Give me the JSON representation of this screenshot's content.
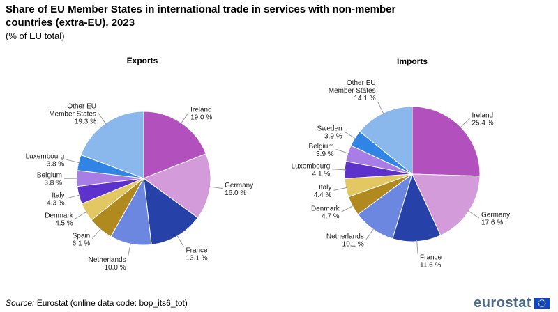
{
  "header": {
    "title": "Share of EU Member States in international trade in services with non-member countries (extra-EU), 2023",
    "subtitle": "(% of EU total)"
  },
  "footer": {
    "source_label": "Source:",
    "source_text": "Eurostat (online data code: bop_its6_tot)",
    "logo": "eurostat"
  },
  "chart_data": [
    {
      "type": "pie",
      "title": "Exports",
      "unit": "%",
      "slices": [
        {
          "label": [
            "Ireland"
          ],
          "value": 19.0,
          "value_label": "19.0 %",
          "color": "#b251be"
        },
        {
          "label": [
            "Germany"
          ],
          "value": 16.0,
          "value_label": "16.0 %",
          "color": "#d49bda"
        },
        {
          "label": [
            "France"
          ],
          "value": 13.1,
          "value_label": "13.1 %",
          "color": "#2641a8"
        },
        {
          "label": [
            "Netherlands"
          ],
          "value": 10.0,
          "value_label": "10.0 %",
          "color": "#6c87e0"
        },
        {
          "label": [
            "Spain"
          ],
          "value": 6.1,
          "value_label": "6.1 %",
          "color": "#b08a1e"
        },
        {
          "label": [
            "Denmark"
          ],
          "value": 4.5,
          "value_label": "4.5 %",
          "color": "#e2c762"
        },
        {
          "label": [
            "Italy"
          ],
          "value": 4.3,
          "value_label": "4.3 %",
          "color": "#5d31cc"
        },
        {
          "label": [
            "Belgium"
          ],
          "value": 3.8,
          "value_label": "3.8 %",
          "color": "#a87ee6"
        },
        {
          "label": [
            "Luxembourg"
          ],
          "value": 3.8,
          "value_label": "3.8 %",
          "color": "#2f84e4"
        },
        {
          "label": [
            "Other EU",
            "Member States"
          ],
          "value": 19.3,
          "value_label": "19.3 %",
          "color": "#8ab8ed"
        }
      ]
    },
    {
      "type": "pie",
      "title": "Imports",
      "unit": "%",
      "slices": [
        {
          "label": [
            "Ireland"
          ],
          "value": 25.4,
          "value_label": "25.4 %",
          "color": "#b251be"
        },
        {
          "label": [
            "Germany"
          ],
          "value": 17.6,
          "value_label": "17.6 %",
          "color": "#d49bda"
        },
        {
          "label": [
            "France"
          ],
          "value": 11.6,
          "value_label": "11.6 %",
          "color": "#2641a8"
        },
        {
          "label": [
            "Netherlands"
          ],
          "value": 10.1,
          "value_label": "10.1 %",
          "color": "#6c87e0"
        },
        {
          "label": [
            "Denmark"
          ],
          "value": 4.7,
          "value_label": "4.7 %",
          "color": "#b08a1e"
        },
        {
          "label": [
            "Italy"
          ],
          "value": 4.4,
          "value_label": "4.4 %",
          "color": "#e2c762"
        },
        {
          "label": [
            "Luxembourg"
          ],
          "value": 4.1,
          "value_label": "4.1 %",
          "color": "#5d31cc"
        },
        {
          "label": [
            "Belgium"
          ],
          "value": 3.9,
          "value_label": "3.9 %",
          "color": "#a87ee6"
        },
        {
          "label": [
            "Sweden"
          ],
          "value": 3.9,
          "value_label": "3.9 %",
          "color": "#2f84e4"
        },
        {
          "label": [
            "Other EU",
            "Member States"
          ],
          "value": 14.1,
          "value_label": "14.1 %",
          "color": "#8ab8ed"
        }
      ]
    }
  ]
}
